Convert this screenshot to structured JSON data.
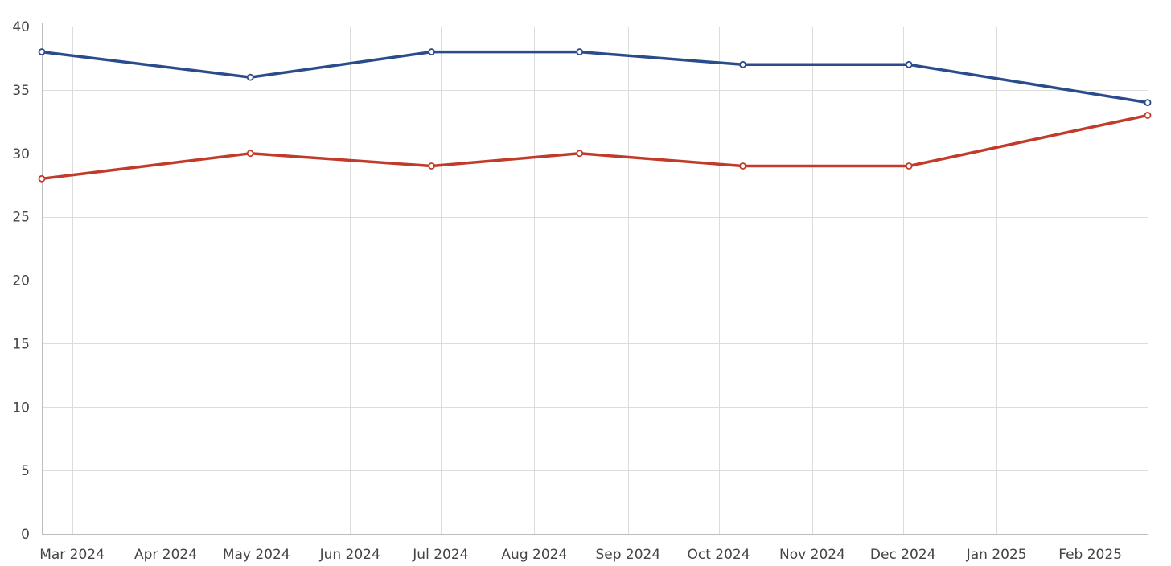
{
  "chart_data": {
    "type": "line",
    "title": "",
    "xlabel": "",
    "ylabel": "",
    "x_axis": {
      "type": "date",
      "range": [
        "2024-02-20",
        "2025-02-20"
      ],
      "ticks": [
        {
          "date": "2024-03-01",
          "label": "Mar 2024"
        },
        {
          "date": "2024-04-01",
          "label": "Apr 2024"
        },
        {
          "date": "2024-05-01",
          "label": "May 2024"
        },
        {
          "date": "2024-06-01",
          "label": "Jun 2024"
        },
        {
          "date": "2024-07-01",
          "label": "Jul 2024"
        },
        {
          "date": "2024-08-01",
          "label": "Aug 2024"
        },
        {
          "date": "2024-09-01",
          "label": "Sep 2024"
        },
        {
          "date": "2024-10-01",
          "label": "Oct 2024"
        },
        {
          "date": "2024-11-01",
          "label": "Nov 2024"
        },
        {
          "date": "2024-12-01",
          "label": "Dec 2024"
        },
        {
          "date": "2025-01-01",
          "label": "Jan 2025"
        },
        {
          "date": "2025-02-01",
          "label": "Feb 2025"
        }
      ]
    },
    "y_axis": {
      "range": [
        0,
        40
      ],
      "ticks": [
        0,
        5,
        10,
        15,
        20,
        25,
        30,
        35,
        40
      ]
    },
    "grid": true,
    "legend": "none",
    "series": [
      {
        "color": "#2b4c8c",
        "points": [
          {
            "x": "2024-02-20",
            "y": 38
          },
          {
            "x": "2024-04-29",
            "y": 36
          },
          {
            "x": "2024-06-28",
            "y": 38
          },
          {
            "x": "2024-08-16",
            "y": 38
          },
          {
            "x": "2024-10-09",
            "y": 37
          },
          {
            "x": "2024-12-03",
            "y": 37
          },
          {
            "x": "2025-02-20",
            "y": 34
          }
        ]
      },
      {
        "color": "#c23b2a",
        "points": [
          {
            "x": "2024-02-20",
            "y": 28
          },
          {
            "x": "2024-04-29",
            "y": 30
          },
          {
            "x": "2024-06-28",
            "y": 29
          },
          {
            "x": "2024-08-16",
            "y": 30
          },
          {
            "x": "2024-10-09",
            "y": 29
          },
          {
            "x": "2024-12-03",
            "y": 29
          },
          {
            "x": "2025-02-20",
            "y": 33
          }
        ]
      }
    ]
  }
}
